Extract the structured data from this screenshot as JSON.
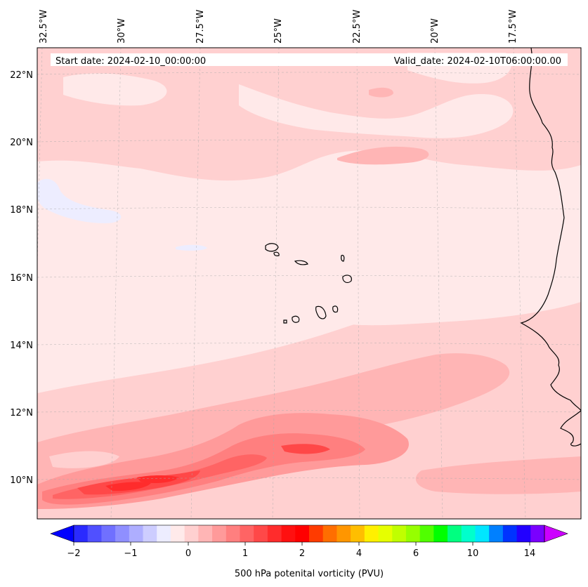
{
  "header": {
    "start_date": "Start date: 2024-02-10_00:00:00",
    "valid_date": "Valid_date: 2024-02-10T06:00:00.00"
  },
  "longitude_labels": [
    "32.5°W",
    "30°W",
    "27.5°W",
    "25°W",
    "22.5°W",
    "20°W",
    "17.5°W"
  ],
  "latitude_labels": [
    "22°N",
    "20°N",
    "18°N",
    "16°N",
    "14°N",
    "12°N",
    "10°N"
  ],
  "colorbar": {
    "label": "500 hPa potenital vorticity (PVU)",
    "ticks": [
      "−2",
      "−1",
      "0",
      "1",
      "2",
      "4",
      "6",
      "10",
      "14"
    ],
    "colors": [
      "#0000ff",
      "#2a2aff",
      "#5050ff",
      "#7070ff",
      "#8f8fff",
      "#aeaeff",
      "#cdcdff",
      "#ededff",
      "#ffeaea",
      "#ffd0d0",
      "#ffb5b5",
      "#ff9a9a",
      "#ff7f7f",
      "#ff6464",
      "#ff4848",
      "#ff2c2c",
      "#ff1010",
      "#ff0000",
      "#ff3b00",
      "#ff6e00",
      "#ff9600",
      "#ffbe00",
      "#fff000",
      "#e6ff00",
      "#c0ff00",
      "#96ff00",
      "#50ff00",
      "#00ff00",
      "#00ff80",
      "#00ffcc",
      "#00e6ff",
      "#0080ff",
      "#0033ff",
      "#2200ff",
      "#7a00ff",
      "#cc00ff"
    ]
  }
}
